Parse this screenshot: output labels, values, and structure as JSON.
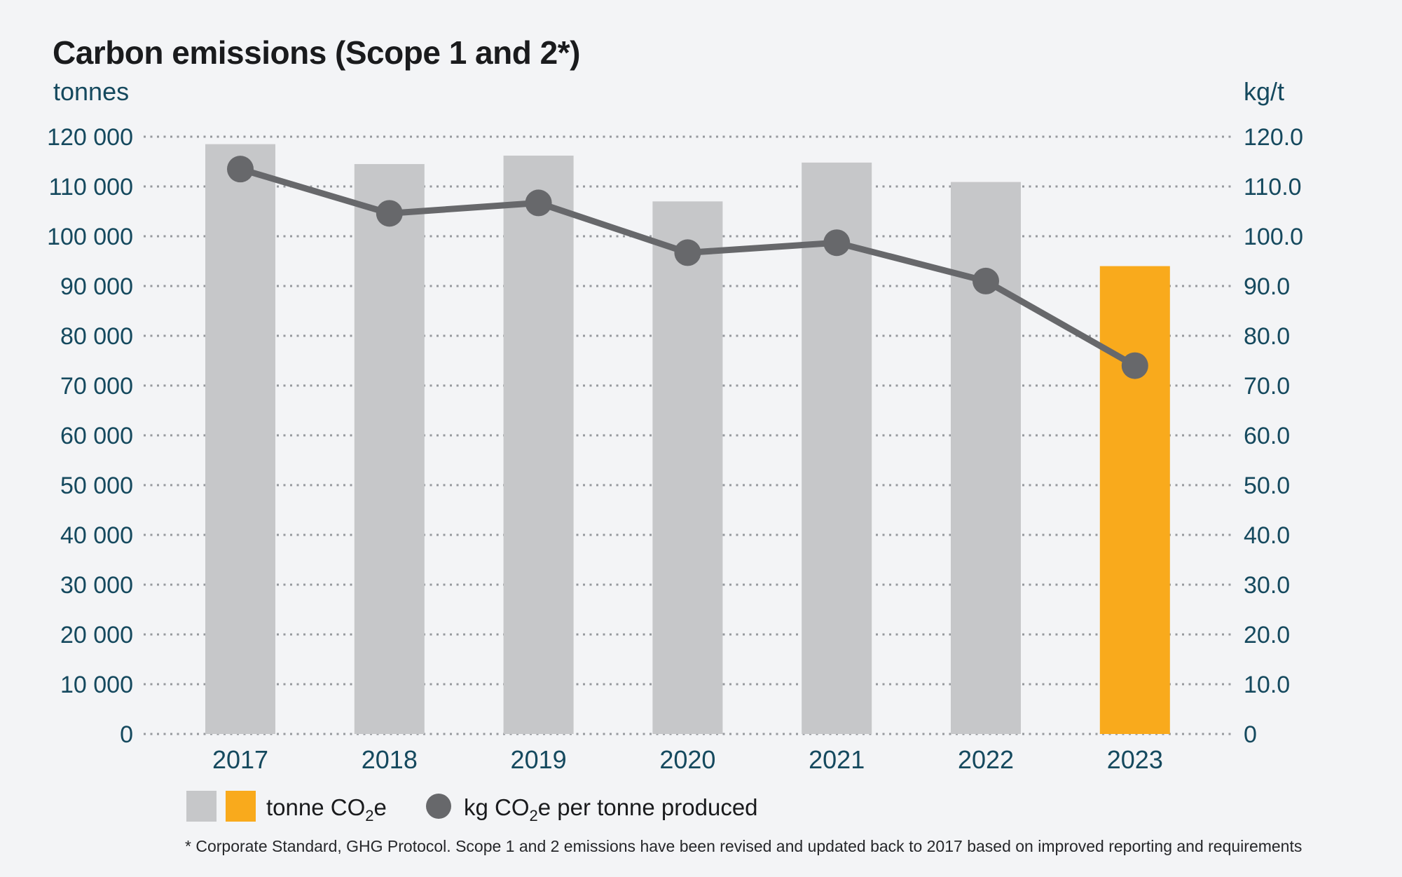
{
  "header": {
    "title": "Carbon emissions (Scope 1 and 2*)"
  },
  "left_axis": {
    "unit": "tonnes",
    "ticks": [
      "120 000",
      "110 000",
      "100 000",
      "90 000",
      "80 000",
      "70 000",
      "60 000",
      "50 000",
      "40 000",
      "30 000",
      "20 000",
      "10 000",
      "0"
    ]
  },
  "right_axis": {
    "unit": "kg/t",
    "ticks": [
      "120.0",
      "110.0",
      "100.0",
      "90.0",
      "80.0",
      "70.0",
      "60.0",
      "50.0",
      "40.0",
      "30.0",
      "20.0",
      "10.0",
      "0"
    ]
  },
  "chart_data": {
    "type": "combo_bar_line",
    "categories": [
      "2017",
      "2018",
      "2019",
      "2020",
      "2021",
      "2022",
      "2023"
    ],
    "series": [
      {
        "name": "tonne CO2e",
        "type": "bar",
        "axis": "left",
        "values": [
          118500,
          114500,
          116200,
          107000,
          114800,
          110900,
          94000
        ]
      },
      {
        "name": "kg CO2e per tonne produced",
        "type": "line",
        "axis": "right",
        "values": [
          113.5,
          104.6,
          106.7,
          96.7,
          98.7,
          91.0,
          74.0
        ]
      }
    ],
    "left_ylim": [
      0,
      120000
    ],
    "right_ylim": [
      0,
      120
    ],
    "grid": "dotted-horizontal",
    "legend_position": "bottom",
    "highlight_index": 6,
    "colors": {
      "background": "#F3F4F6",
      "bar": "#C6C7C9",
      "bar_highlight": "#F9AA1C",
      "line": "#67686B",
      "grid": "#96999D",
      "axis_text": "#15495E",
      "title_text": "#1A1B1D"
    }
  },
  "legend": {
    "bar_label": {
      "pre": "tonne CO",
      "sub": "2",
      "post": "e"
    },
    "line_label": {
      "pre": "kg CO",
      "sub": "2",
      "post": "e per tonne produced"
    }
  },
  "footnote": {
    "text": "* Corporate Standard, GHG Protocol. Scope 1 and 2 emissions have been revised and updated back to 2017 based on improved reporting and requirements"
  }
}
